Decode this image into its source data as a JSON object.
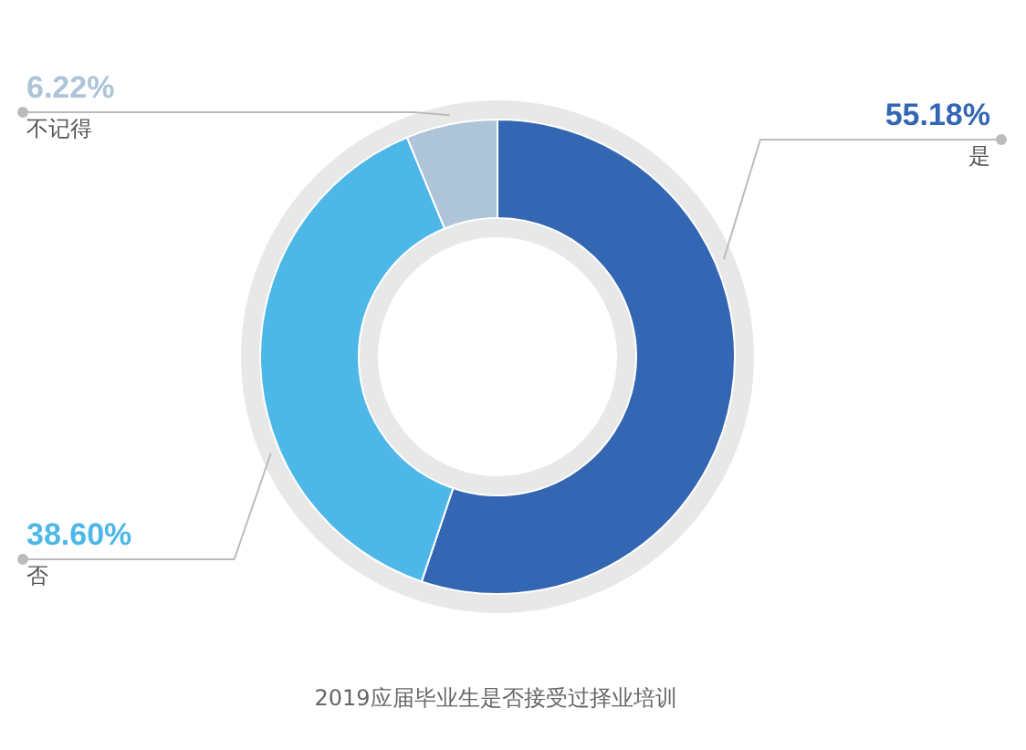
{
  "chart_data": {
    "type": "donut",
    "title": "2019应届毕业生是否接受过择业培训",
    "categories": [
      "是",
      "否",
      "不记得"
    ],
    "values": [
      55.18,
      38.6,
      6.22
    ],
    "colors": [
      "#3366b3",
      "#4db8e8",
      "#aec4d8"
    ],
    "value_labels": [
      "55.18%",
      "38.60%",
      "6.22%"
    ]
  }
}
